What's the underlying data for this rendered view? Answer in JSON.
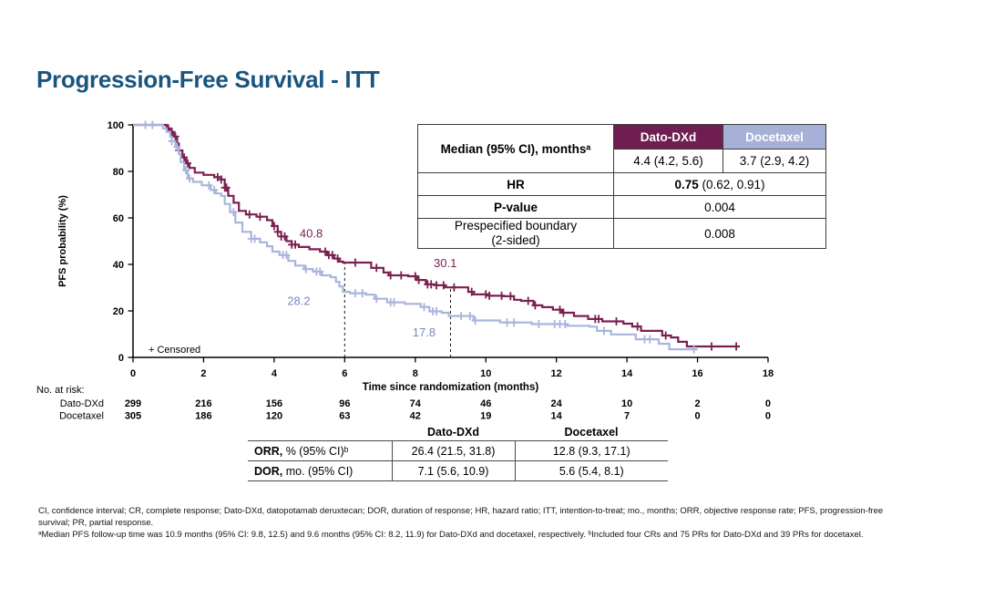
{
  "title": "Progression-Free Survival - ITT",
  "colors": {
    "title_blue": "#19557F",
    "dato_curve": "#7B2150",
    "dato_header_bg": "#6E1E50",
    "docetaxel_curve": "#A9B5DC",
    "docetaxel_header_bg": "#A7B0D6",
    "docetaxel_annotation": "#7C87BE"
  },
  "stats_table": {
    "corner_label": "Median (95% CI), monthsᵃ",
    "col1_header": "Dato-DXd",
    "col2_header": "Docetaxel",
    "col1_median": "4.4 (4.2, 5.6)",
    "col2_median": "3.7 (2.9, 4.2)",
    "hr_label": "HR",
    "hr_value_strong": "0.75",
    "hr_value_rest": " (0.62, 0.91)",
    "pvalue_label": "P-value",
    "pvalue": "0.004",
    "boundary_label_line1": "Prespecified boundary",
    "boundary_label_line2": "(2-sided)",
    "boundary_value": "0.008"
  },
  "chart_data": {
    "type": "line",
    "subtype": "kaplan-meier-step",
    "title": "",
    "xlabel": "Time since randomization (months)",
    "ylabel": "PFS probability (%)",
    "xlim": [
      0,
      18
    ],
    "ylim": [
      0,
      100
    ],
    "xticks": [
      0,
      2,
      4,
      6,
      8,
      10,
      12,
      14,
      16,
      18
    ],
    "yticks": [
      0,
      20,
      40,
      60,
      80,
      100
    ],
    "grid": false,
    "censored_legend": "+ Censored",
    "series": [
      {
        "name": "Dato-DXd",
        "color": "#7B2150",
        "median_months": 4.4,
        "steps": [
          [
            0,
            100
          ],
          [
            0.8,
            100
          ],
          [
            0.95,
            98.5
          ],
          [
            1.05,
            97
          ],
          [
            1.15,
            95
          ],
          [
            1.25,
            92
          ],
          [
            1.3,
            89
          ],
          [
            1.4,
            86
          ],
          [
            1.5,
            83.5
          ],
          [
            1.6,
            81.5
          ],
          [
            1.75,
            79.5
          ],
          [
            2.0,
            78.5
          ],
          [
            2.3,
            77.5
          ],
          [
            2.5,
            76.5
          ],
          [
            2.6,
            73
          ],
          [
            2.7,
            69.5
          ],
          [
            2.85,
            66.5
          ],
          [
            3.0,
            63
          ],
          [
            3.2,
            61.5
          ],
          [
            3.5,
            60.5
          ],
          [
            3.8,
            59
          ],
          [
            3.95,
            56.5
          ],
          [
            4.1,
            54
          ],
          [
            4.2,
            52
          ],
          [
            4.35,
            50
          ],
          [
            4.5,
            48.5
          ],
          [
            4.7,
            47.5
          ],
          [
            5.0,
            46.5
          ],
          [
            5.3,
            45.5
          ],
          [
            5.5,
            44
          ],
          [
            5.7,
            42.5
          ],
          [
            5.85,
            41.2
          ],
          [
            5.95,
            40.8
          ],
          [
            6.6,
            40.8
          ],
          [
            6.75,
            38.5
          ],
          [
            7.1,
            36.5
          ],
          [
            7.25,
            35.3
          ],
          [
            7.8,
            34.9
          ],
          [
            8.05,
            33.3
          ],
          [
            8.3,
            31.4
          ],
          [
            8.6,
            31
          ],
          [
            8.85,
            30.1
          ],
          [
            9.4,
            30.1
          ],
          [
            9.5,
            28.2
          ],
          [
            9.65,
            27.1
          ],
          [
            10.1,
            26.5
          ],
          [
            10.5,
            26.3
          ],
          [
            10.8,
            24.8
          ],
          [
            11.0,
            24.3
          ],
          [
            11.35,
            22.4
          ],
          [
            11.6,
            21.6
          ],
          [
            11.9,
            20.5
          ],
          [
            12.15,
            19.2
          ],
          [
            12.5,
            17.8
          ],
          [
            12.9,
            16.5
          ],
          [
            13.3,
            15.5
          ],
          [
            13.9,
            14.5
          ],
          [
            14.15,
            13.3
          ],
          [
            14.4,
            11.4
          ],
          [
            15.0,
            9.4
          ],
          [
            15.25,
            8.6
          ],
          [
            15.45,
            6.7
          ],
          [
            15.7,
            4.7
          ],
          [
            17.2,
            4.7
          ]
        ],
        "censor_months": [
          1.0,
          1.1,
          1.2,
          1.3,
          1.45,
          1.55,
          2.4,
          2.5,
          2.6,
          2.65,
          3.3,
          3.6,
          4.0,
          4.1,
          4.2,
          4.3,
          4.5,
          4.6,
          5.45,
          5.55,
          5.65,
          5.8,
          6.3,
          6.9,
          7.3,
          7.6,
          8.0,
          8.1,
          8.35,
          8.45,
          8.6,
          8.8,
          9.1,
          9.6,
          10.0,
          10.1,
          10.45,
          10.7,
          11.2,
          11.4,
          12.1,
          12.2,
          13.1,
          13.2,
          13.7,
          14.3,
          15.1,
          16.4,
          17.1
        ]
      },
      {
        "name": "Docetaxel",
        "color": "#A9B5DC",
        "median_months": 3.7,
        "steps": [
          [
            0,
            100
          ],
          [
            0.7,
            100
          ],
          [
            0.85,
            98.5
          ],
          [
            0.95,
            97
          ],
          [
            1.05,
            95
          ],
          [
            1.1,
            93
          ],
          [
            1.2,
            90.5
          ],
          [
            1.3,
            87.5
          ],
          [
            1.35,
            84
          ],
          [
            1.45,
            80.5
          ],
          [
            1.55,
            77
          ],
          [
            1.7,
            75.5
          ],
          [
            1.95,
            74
          ],
          [
            2.2,
            72
          ],
          [
            2.35,
            70.5
          ],
          [
            2.5,
            69.5
          ],
          [
            2.6,
            66
          ],
          [
            2.75,
            62.5
          ],
          [
            2.9,
            58
          ],
          [
            3.1,
            54
          ],
          [
            3.35,
            51
          ],
          [
            3.6,
            49.5
          ],
          [
            3.8,
            47.8
          ],
          [
            3.95,
            45.5
          ],
          [
            4.15,
            44
          ],
          [
            4.4,
            41.5
          ],
          [
            4.6,
            39.5
          ],
          [
            4.85,
            38
          ],
          [
            5.1,
            36.9
          ],
          [
            5.35,
            35.3
          ],
          [
            5.6,
            34.5
          ],
          [
            5.75,
            32.5
          ],
          [
            5.85,
            30.5
          ],
          [
            5.95,
            28.2
          ],
          [
            6.15,
            27.6
          ],
          [
            6.6,
            27
          ],
          [
            6.85,
            25.2
          ],
          [
            7.2,
            23.7
          ],
          [
            7.7,
            23
          ],
          [
            8.15,
            21.7
          ],
          [
            8.4,
            19.8
          ],
          [
            8.75,
            19.2
          ],
          [
            8.95,
            17.8
          ],
          [
            9.65,
            15.9
          ],
          [
            10.4,
            15.0
          ],
          [
            11.3,
            14.3
          ],
          [
            12.3,
            13.6
          ],
          [
            12.95,
            13.2
          ],
          [
            13.15,
            11.4
          ],
          [
            13.55,
            9.9
          ],
          [
            14.25,
            7.8
          ],
          [
            14.9,
            5.9
          ],
          [
            15.2,
            3.5
          ],
          [
            16.0,
            3.5
          ]
        ],
        "censor_months": [
          0.35,
          0.55,
          1.1,
          1.25,
          1.5,
          1.6,
          2.15,
          2.3,
          2.85,
          3.35,
          3.45,
          4.25,
          4.35,
          4.9,
          5.2,
          5.3,
          6.3,
          6.5,
          6.9,
          7.3,
          7.4,
          8.25,
          8.5,
          8.6,
          9.3,
          9.55,
          9.7,
          10.6,
          10.8,
          11.5,
          11.95,
          12.1,
          12.25,
          13.35,
          14.5,
          14.65,
          15.9
        ]
      }
    ],
    "median_drop_lines": [
      {
        "month": 6,
        "to_pct": 40.8
      },
      {
        "month": 9,
        "to_pct": 30.1
      }
    ],
    "annotations": [
      {
        "text": "40.8",
        "month": 5.05,
        "pct": 51.5,
        "color": "#7B2150"
      },
      {
        "text": "28.2",
        "month": 4.7,
        "pct": 22.6,
        "color": "#7C87BE"
      },
      {
        "text": "30.1",
        "month": 8.85,
        "pct": 38.8,
        "color": "#7B2150"
      },
      {
        "text": "17.8",
        "month": 8.25,
        "pct": 9.0,
        "color": "#7C87BE"
      }
    ],
    "at_risk": {
      "label": "No. at risk:",
      "times": [
        0,
        2,
        4,
        6,
        8,
        10,
        12,
        14,
        16,
        18
      ],
      "rows": [
        {
          "name": "Dato-DXd",
          "values": [
            "299",
            "216",
            "156",
            "96",
            "74",
            "46",
            "24",
            "10",
            "2",
            "0"
          ]
        },
        {
          "name": "Docetaxel",
          "values": [
            "305",
            "186",
            "120",
            "63",
            "42",
            "19",
            "14",
            "7",
            "0",
            "0"
          ]
        }
      ]
    }
  },
  "response_table": {
    "col1_header": "Dato-DXd",
    "col2_header": "Docetaxel",
    "rows": [
      {
        "label_strong": "ORR,",
        "label_rest": " % (95% CI)ᵇ",
        "dato": "26.4 (21.5, 31.8)",
        "docetaxel": "12.8 (9.3, 17.1)"
      },
      {
        "label_strong": "DOR,",
        "label_rest": " mo. (95% CI)",
        "dato": "7.1 (5.6, 10.9)",
        "docetaxel": "5.6 (5.4, 8.1)"
      }
    ]
  },
  "footnotes": {
    "lines": [
      "CI, confidence interval; CR, complete response; Dato-DXd, datopotamab deruxtecan; DOR, duration of response; HR, hazard ratio; ITT, intention-to-treat; mo., months; ORR, objective response rate; PFS, progression-free",
      "survival; PR, partial response.",
      "ᵃMedian PFS follow-up time was 10.9 months (95% CI: 9.8, 12.5) and 9.6 months (95% CI: 8.2, 11.9) for Dato-DXd and docetaxel, respectively. ᵇIncluded four CRs and 75 PRs for Dato-DXd and 39 PRs for docetaxel."
    ]
  }
}
